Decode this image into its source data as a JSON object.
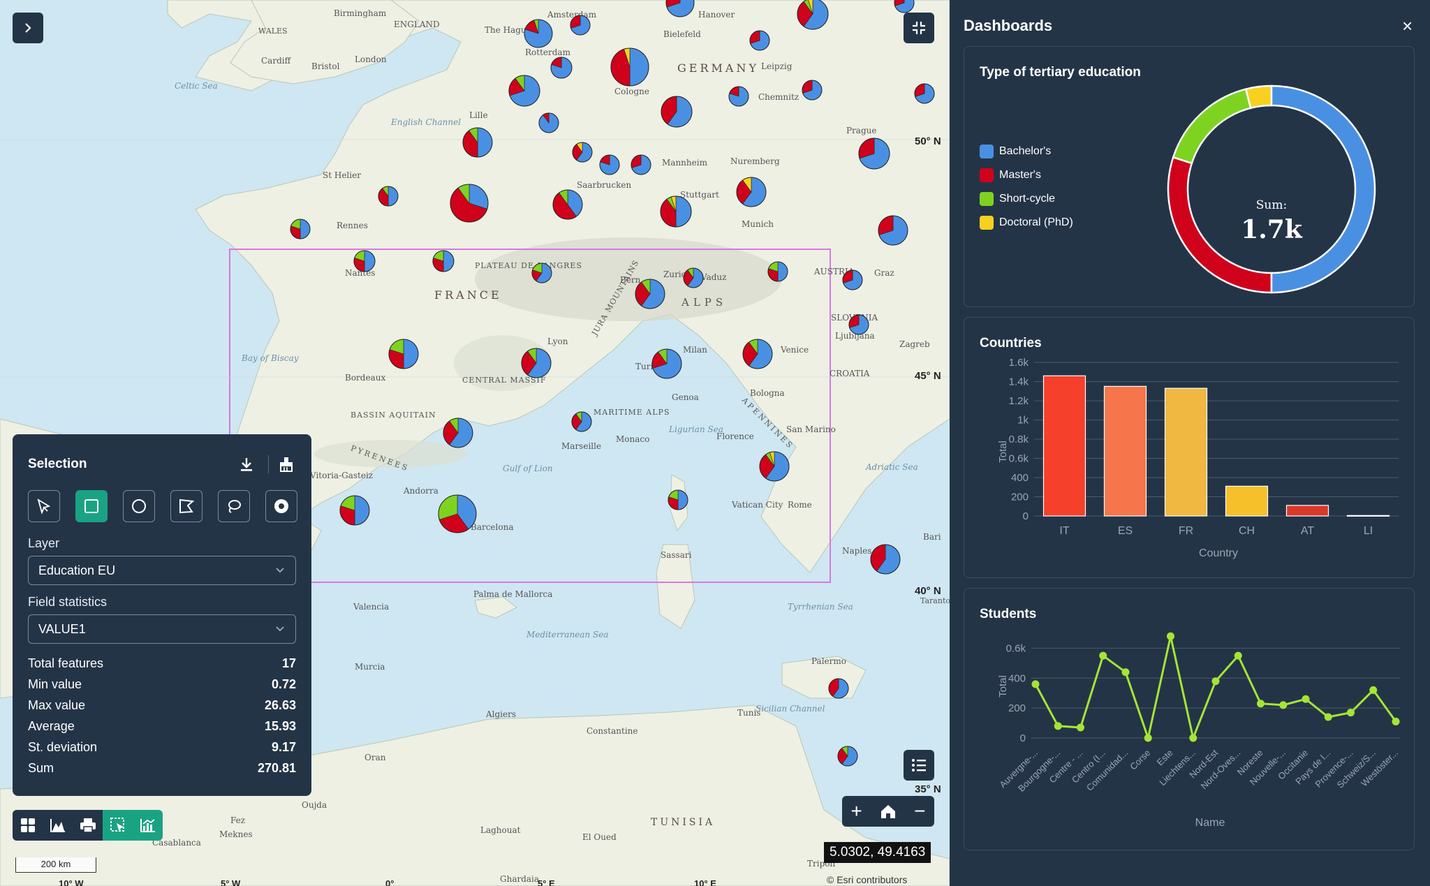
{
  "map": {
    "labels": {
      "countries": [
        "FRANCE",
        "GERMANY",
        "ENGLAND",
        "WALES",
        "TUNISIA",
        "AUSTRIA",
        "CROATIA",
        "SLOVENIA"
      ],
      "cities": [
        "Birmingham",
        "Cardiff",
        "Bristol",
        "London",
        "Amsterdam",
        "The Hague",
        "Rotterdam",
        "Hanover",
        "Bielefeld",
        "Leipzig",
        "Cologne",
        "Chemnitz",
        "Prague",
        "Mannheim",
        "Nuremberg",
        "Saarbrucken",
        "Stuttgart",
        "Munich",
        "Rennes",
        "Nantes",
        "St Helier",
        "Lille",
        "Bern",
        "Zurich",
        "Vaduz",
        "Graz",
        "Ljubljana",
        "Zagreb",
        "Lyon",
        "Milan",
        "Turin",
        "Venice",
        "Bologna",
        "Genoa",
        "Florence",
        "San Marino",
        "Bordeaux",
        "Marseille",
        "Monaco",
        "Andorra",
        "Vitoria-Gasteiz",
        "Barcelona",
        "Vatican City",
        "Rome",
        "Naples",
        "Bari",
        "Sassari",
        "Palma de Mallorca",
        "Valencia",
        "Murcia",
        "Palermo",
        "Algiers",
        "Constantine",
        "Tunis",
        "Oran",
        "Oujda",
        "Fez",
        "Meknes",
        "Casablanca",
        "Laghouat",
        "El Oued",
        "Ghardaia",
        "Tripoli",
        "Taranto"
      ],
      "seas": [
        "Celtic Sea",
        "English Channel",
        "Bay of Biscay",
        "Gulf of Lion",
        "Ligurian Sea",
        "Adriatic Sea",
        "Tyrrhenian Sea",
        "Mediterranean Sea",
        "Sicilian Channel"
      ],
      "regions": [
        "PLATEAU DE LANGRES",
        "CENTRAL MASSIF",
        "BASSIN AQUITAIN",
        "MARITIME ALPS",
        "JURA MOUNTAINS",
        "ALPS",
        "PYRENEES",
        "APENNINES"
      ],
      "latitudes": [
        "50° N",
        "45° N",
        "40° N",
        "35° N"
      ],
      "longitudes": [
        "10° W",
        "5° W",
        "0°",
        "5° E",
        "10° E"
      ]
    },
    "coordinates": "5.0302, 49.4163",
    "scale": "200 km",
    "attribution": "© Esri contributors",
    "colors": {
      "bachelor": "#4a90e2",
      "master": "#d0021b",
      "short": "#7ed321",
      "phd": "#f8d020",
      "selection": "#d878e0"
    }
  },
  "selection": {
    "title": "Selection",
    "tools": [
      "pointer-select-icon",
      "rectangle-select-icon",
      "circle-select-icon",
      "polygon-select-icon",
      "lasso-select-icon",
      "point-buffer-icon"
    ],
    "layer_label": "Layer",
    "layer_value": "Education EU",
    "field_label": "Field statistics",
    "field_value": "VALUE1",
    "stats": [
      {
        "label": "Total features",
        "value": "17"
      },
      {
        "label": "Min value",
        "value": "0.72"
      },
      {
        "label": "Max value",
        "value": "26.63"
      },
      {
        "label": "Average",
        "value": "15.93"
      },
      {
        "label": "St. deviation",
        "value": "9.17"
      },
      {
        "label": "Sum",
        "value": "270.81"
      }
    ]
  },
  "dashboard": {
    "title": "Dashboards",
    "close": "×"
  },
  "chart_data": [
    {
      "type": "pie",
      "title": "Type of tertiary education",
      "center_label": "Sum:",
      "center_value": "1.7k",
      "categories": [
        "Bachelor's",
        "Master's",
        "Short-cycle",
        "Doctoral (PhD)"
      ],
      "values": [
        0.5,
        0.3,
        0.16,
        0.04
      ],
      "colors": [
        "#4a90e2",
        "#d0021b",
        "#7ed321",
        "#f8d020"
      ]
    },
    {
      "type": "bar",
      "title": "Countries",
      "categories": [
        "IT",
        "ES",
        "FR",
        "CH",
        "AT",
        "LI"
      ],
      "values": [
        1460,
        1350,
        1330,
        310,
        110,
        5
      ],
      "colors": [
        "#f5402c",
        "#f7754a",
        "#f0b840",
        "#f5c02a",
        "#d8392a",
        "#c0392b"
      ],
      "xlabel": "Country",
      "ylabel": "Total",
      "ylim": [
        0,
        1600
      ],
      "yticks": [
        "0",
        "200",
        "400",
        "0.6k",
        "0.8k",
        "1k",
        "1.2k",
        "1.4k",
        "1.6k"
      ]
    },
    {
      "type": "line",
      "title": "Students",
      "categories": [
        "Auvergne-...",
        "Bourgogne-...",
        "Centre - ...",
        "Centro (I...",
        "Comunidad...",
        "Corse",
        "Este",
        "Liechtens...",
        "Nord-Est",
        "Nord-Oves...",
        "Noreste",
        "Nouvelle-...",
        "Occitanie",
        "Pays de l...",
        "Provence-...",
        "Schweiz/S...",
        "Westöster..."
      ],
      "values": [
        360,
        80,
        70,
        550,
        440,
        0,
        680,
        0,
        380,
        550,
        230,
        220,
        260,
        140,
        170,
        320,
        110
      ],
      "xlabel": "Name",
      "ylabel": "Total",
      "ylim": [
        0,
        700
      ],
      "yticks": [
        "0",
        "200",
        "400",
        "0.6k"
      ],
      "color": "#a3e635"
    }
  ]
}
